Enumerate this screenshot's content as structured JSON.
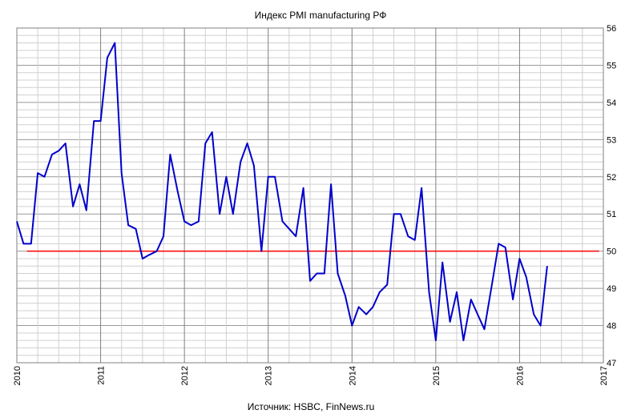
{
  "chart_data": {
    "type": "line",
    "title": "Индекс PMI manufacturing РФ",
    "source": "Источник: HSBC, FinNews.ru",
    "xlim": [
      2010,
      2017
    ],
    "ylim": [
      47,
      56
    ],
    "x_ticks": [
      "2010",
      "2011",
      "2012",
      "2013",
      "2014",
      "2015",
      "2016",
      "2017"
    ],
    "y_ticks": [
      "47",
      "48",
      "49",
      "50",
      "51",
      "52",
      "53",
      "54",
      "55",
      "56"
    ],
    "grid": true,
    "reference_line": {
      "y": 50,
      "color": "#ff0000"
    },
    "series": [
      {
        "color": "#0000cc",
        "x": [
          2010.0,
          2010.08,
          2010.17,
          2010.25,
          2010.33,
          2010.42,
          2010.5,
          2010.58,
          2010.67,
          2010.75,
          2010.83,
          2010.92,
          2011.0,
          2011.08,
          2011.17,
          2011.25,
          2011.33,
          2011.42,
          2011.5,
          2011.58,
          2011.67,
          2011.75,
          2011.83,
          2011.92,
          2012.0,
          2012.08,
          2012.17,
          2012.25,
          2012.33,
          2012.42,
          2012.5,
          2012.58,
          2012.67,
          2012.75,
          2012.83,
          2012.92,
          2013.0,
          2013.08,
          2013.17,
          2013.25,
          2013.33,
          2013.42,
          2013.5,
          2013.58,
          2013.67,
          2013.75,
          2013.83,
          2013.92,
          2014.0,
          2014.08,
          2014.17,
          2014.25,
          2014.33,
          2014.42,
          2014.5,
          2014.58,
          2014.67,
          2014.75,
          2014.83,
          2014.92,
          2015.0,
          2015.08,
          2015.17,
          2015.25,
          2015.33,
          2015.42,
          2015.5,
          2015.58,
          2015.67,
          2015.75,
          2015.83,
          2015.92,
          2016.0,
          2016.08,
          2016.17,
          2016.25,
          2016.33
        ],
        "values": [
          50.8,
          50.2,
          50.2,
          52.1,
          52.0,
          52.6,
          52.7,
          52.9,
          51.2,
          51.8,
          51.1,
          53.5,
          53.5,
          55.2,
          55.6,
          52.1,
          50.7,
          50.6,
          49.8,
          49.9,
          50.0,
          50.4,
          52.6,
          51.6,
          50.8,
          50.7,
          50.8,
          52.9,
          53.2,
          51.0,
          52.0,
          51.0,
          52.4,
          52.9,
          52.3,
          50.0,
          52.0,
          52.0,
          50.8,
          50.6,
          50.4,
          51.7,
          49.2,
          49.4,
          49.4,
          51.8,
          49.4,
          48.8,
          48.0,
          48.5,
          48.3,
          48.5,
          48.9,
          49.1,
          51.0,
          51.0,
          50.4,
          50.3,
          51.7,
          48.9,
          47.6,
          49.7,
          48.1,
          48.9,
          47.6,
          48.7,
          48.3,
          47.9,
          49.1,
          50.2,
          50.1,
          48.7,
          49.8,
          49.3,
          48.3,
          48.0,
          49.6
        ]
      }
    ]
  }
}
